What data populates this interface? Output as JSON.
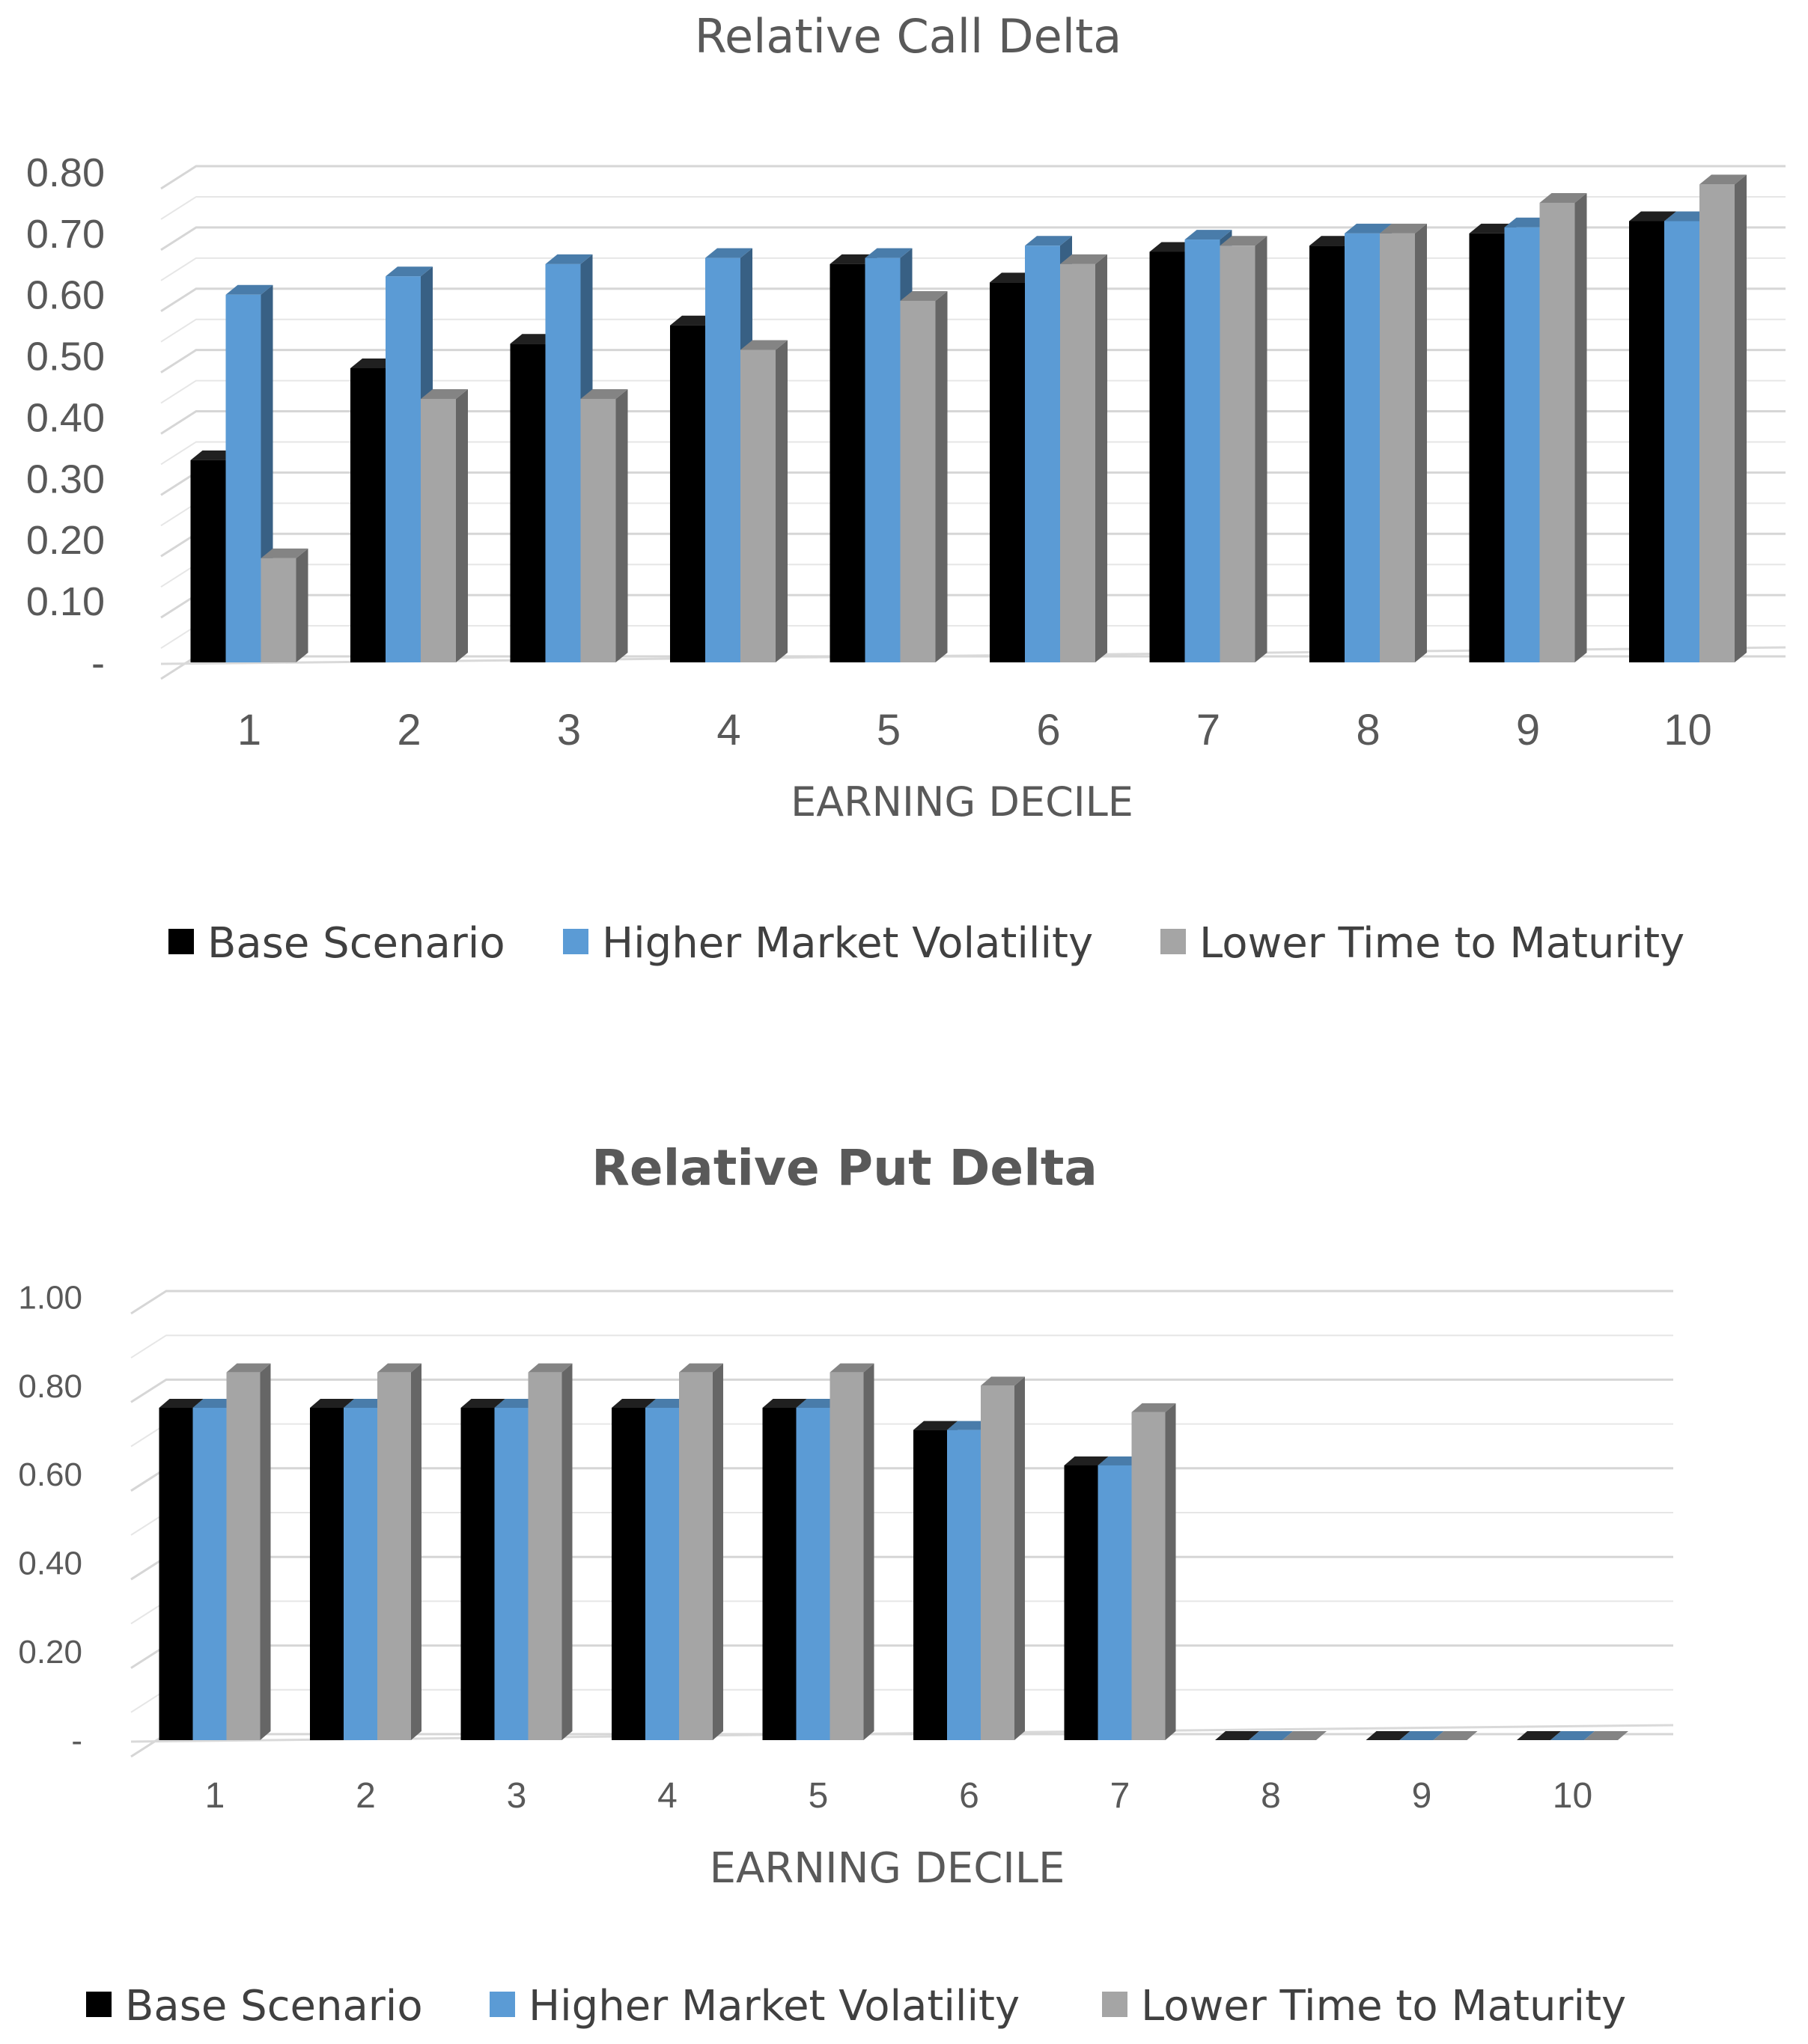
{
  "chart_data": [
    {
      "type": "bar",
      "title": "Relative Call Delta",
      "xlabel": "EARNING DECILE",
      "ylabel": "",
      "ylim": [
        0,
        0.8
      ],
      "y_ticks": [
        "-",
        "0.10",
        "0.20",
        "0.30",
        "0.40",
        "0.50",
        "0.60",
        "0.70",
        "0.80"
      ],
      "grid": true,
      "legend_position": "bottom",
      "categories": [
        "1",
        "2",
        "3",
        "4",
        "5",
        "6",
        "7",
        "8",
        "9",
        "10"
      ],
      "series": [
        {
          "name": "Base Scenario",
          "color": "#000000",
          "values": [
            0.33,
            0.48,
            0.52,
            0.55,
            0.65,
            0.62,
            0.67,
            0.68,
            0.7,
            0.72
          ]
        },
        {
          "name": "Higher Market Volatility",
          "color": "#5B9BD5",
          "values": [
            0.6,
            0.63,
            0.65,
            0.66,
            0.66,
            0.68,
            0.69,
            0.7,
            0.71,
            0.72
          ]
        },
        {
          "name": "Lower Time to Maturity",
          "color": "#A5A5A5",
          "values": [
            0.17,
            0.43,
            0.43,
            0.51,
            0.59,
            0.65,
            0.68,
            0.7,
            0.75,
            0.78
          ]
        }
      ]
    },
    {
      "type": "bar",
      "title": "Relative Put Delta",
      "xlabel": "EARNING DECILE",
      "ylabel": "",
      "ylim": [
        0,
        1.0
      ],
      "y_ticks": [
        "-",
        "0.20",
        "0.40",
        "0.60",
        "0.80",
        "1.00"
      ],
      "grid": true,
      "legend_position": "bottom",
      "categories": [
        "1",
        "2",
        "3",
        "4",
        "5",
        "6",
        "7",
        "8",
        "9",
        "10"
      ],
      "series": [
        {
          "name": "Base Scenario",
          "color": "#000000",
          "values": [
            0.75,
            0.75,
            0.75,
            0.75,
            0.75,
            0.7,
            0.62,
            0.0,
            0.0,
            0.0
          ]
        },
        {
          "name": "Higher Market Volatility",
          "color": "#5B9BD5",
          "values": [
            0.75,
            0.75,
            0.75,
            0.75,
            0.75,
            0.7,
            0.62,
            0.0,
            0.0,
            0.0
          ]
        },
        {
          "name": "Lower Time to Maturity",
          "color": "#A5A5A5",
          "values": [
            0.83,
            0.83,
            0.83,
            0.83,
            0.83,
            0.8,
            0.74,
            0.0,
            0.0,
            0.0
          ]
        }
      ]
    }
  ]
}
